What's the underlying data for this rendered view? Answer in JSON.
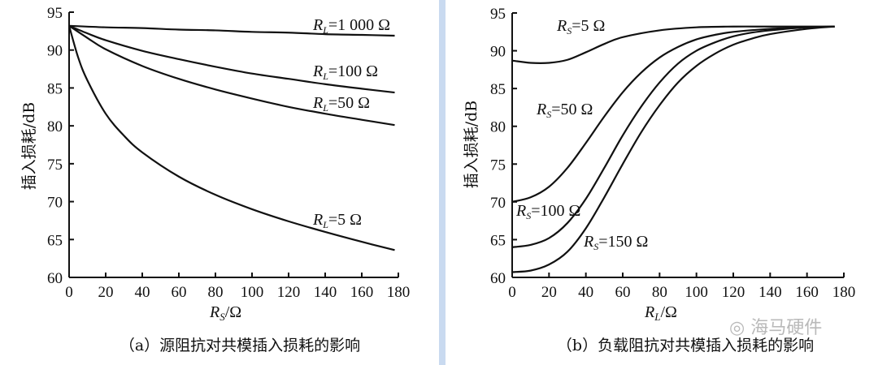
{
  "watermark": "海马硬件",
  "chart_data": [
    {
      "type": "line",
      "caption": "（a）源阻抗对共模插入损耗的影响",
      "xlabel_main": "R",
      "xlabel_sub": "S",
      "xlabel_unit": "/Ω",
      "ylabel": "插入损耗/dB",
      "xlim": [
        0,
        180
      ],
      "ylim": [
        60,
        95
      ],
      "xticks": [
        0,
        20,
        40,
        60,
        80,
        100,
        120,
        140,
        160,
        180
      ],
      "yticks": [
        60,
        65,
        70,
        75,
        80,
        85,
        90,
        95
      ],
      "series": [
        {
          "name": "RL=1 000 Ω",
          "label_main": "R",
          "label_sub": "L",
          "label_rest": "=1 000 Ω",
          "x": [
            0,
            20,
            40,
            60,
            80,
            100,
            120,
            140,
            160,
            178
          ],
          "y": [
            93.2,
            93.0,
            92.9,
            92.7,
            92.6,
            92.4,
            92.3,
            92.1,
            92.0,
            91.9
          ]
        },
        {
          "name": "RL=100 Ω",
          "label_main": "R",
          "label_sub": "L",
          "label_rest": "=100 Ω",
          "x": [
            0,
            10,
            20,
            40,
            60,
            80,
            100,
            120,
            140,
            160,
            178
          ],
          "y": [
            93.2,
            92.2,
            91.3,
            89.9,
            88.8,
            87.8,
            86.9,
            86.2,
            85.5,
            84.9,
            84.4
          ]
        },
        {
          "name": "RL=50 Ω",
          "label_main": "R",
          "label_sub": "L",
          "label_rest": "=50 Ω",
          "x": [
            0,
            10,
            20,
            40,
            60,
            80,
            100,
            120,
            140,
            160,
            178
          ],
          "y": [
            93.2,
            91.6,
            90.1,
            87.9,
            86.2,
            84.8,
            83.6,
            82.5,
            81.6,
            80.8,
            80.1
          ]
        },
        {
          "name": "RL=5 Ω",
          "label_main": "R",
          "label_sub": "L",
          "label_rest": "=5 Ω",
          "x": [
            0,
            5,
            10,
            20,
            30,
            40,
            60,
            80,
            100,
            120,
            140,
            160,
            178
          ],
          "y": [
            93.2,
            89.0,
            86.0,
            81.6,
            78.7,
            76.5,
            73.3,
            70.9,
            69.0,
            67.4,
            66.0,
            64.7,
            63.6
          ]
        }
      ]
    },
    {
      "type": "line",
      "caption": "（b）负载阻抗对共模插入损耗的影响",
      "xlabel_main": "R",
      "xlabel_sub": "L",
      "xlabel_unit": "/Ω",
      "ylabel": "插入损耗/dB",
      "xlim": [
        0,
        180
      ],
      "ylim": [
        60,
        95
      ],
      "xticks": [
        0,
        20,
        40,
        60,
        80,
        100,
        120,
        140,
        160,
        180
      ],
      "yticks": [
        60,
        65,
        70,
        75,
        80,
        85,
        90,
        95
      ],
      "series": [
        {
          "name": "RS=5 Ω",
          "label_main": "R",
          "label_sub": "S",
          "label_rest": "=5 Ω",
          "x": [
            0,
            10,
            20,
            30,
            40,
            50,
            60,
            80,
            100,
            120,
            140,
            160,
            175
          ],
          "y": [
            88.7,
            88.4,
            88.4,
            88.8,
            89.8,
            90.9,
            91.8,
            92.7,
            93.1,
            93.2,
            93.2,
            93.2,
            93.2
          ]
        },
        {
          "name": "RS=50 Ω",
          "label_main": "R",
          "label_sub": "S",
          "label_rest": "=50 Ω",
          "x": [
            0,
            10,
            20,
            30,
            40,
            50,
            60,
            70,
            80,
            90,
            100,
            110,
            120,
            140,
            160,
            175
          ],
          "y": [
            70.0,
            70.6,
            72.0,
            74.5,
            77.8,
            81.3,
            84.5,
            87.1,
            89.1,
            90.5,
            91.5,
            92.1,
            92.5,
            92.9,
            93.1,
            93.2
          ]
        },
        {
          "name": "RS=100 Ω",
          "label_main": "R",
          "label_sub": "S",
          "label_rest": "=100 Ω",
          "x": [
            0,
            10,
            20,
            30,
            40,
            50,
            60,
            70,
            80,
            90,
            100,
            110,
            120,
            130,
            140,
            160,
            175
          ],
          "y": [
            64.0,
            64.3,
            65.2,
            67.2,
            70.4,
            74.5,
            78.8,
            82.6,
            85.8,
            88.3,
            90.0,
            91.1,
            91.9,
            92.4,
            92.7,
            93.1,
            93.2
          ]
        },
        {
          "name": "RS=150 Ω",
          "label_main": "R",
          "label_sub": "S",
          "label_rest": "=150 Ω",
          "x": [
            0,
            10,
            20,
            30,
            40,
            50,
            60,
            70,
            80,
            90,
            100,
            110,
            120,
            130,
            140,
            160,
            175
          ],
          "y": [
            60.7,
            60.9,
            61.7,
            63.4,
            66.5,
            70.6,
            75.0,
            79.2,
            82.8,
            85.8,
            88.0,
            89.6,
            90.8,
            91.6,
            92.2,
            92.9,
            93.2
          ]
        }
      ]
    }
  ]
}
